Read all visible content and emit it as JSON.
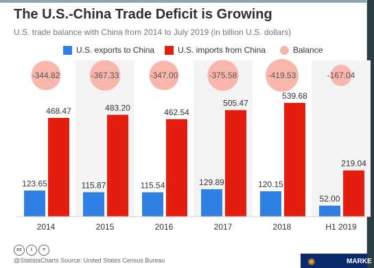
{
  "title": "The U.S.-China Trade Deficit is Growing",
  "subtitle": "U.S. trade balance with China from 2014 to July 2019 (in billion U.S. dollars)",
  "footer": {
    "credit": "@StatistaCharts   Source: United States Census Bureau",
    "ticker_label": "MARKE"
  },
  "colors": {
    "exports": "#2f80e2",
    "imports": "#e31e0f",
    "balance": "#f8b6ad",
    "band": "#f3f3f3"
  },
  "chart_data": {
    "type": "bar",
    "categories": [
      "2014",
      "2015",
      "2016",
      "2017",
      "2018",
      "H1 2019"
    ],
    "series": [
      {
        "name": "U.S. exports to China",
        "values": [
          123.65,
          115.87,
          115.54,
          129.89,
          120.15,
          52.0
        ]
      },
      {
        "name": "U.S. imports from China",
        "values": [
          468.47,
          483.2,
          462.54,
          505.47,
          539.68,
          219.04
        ]
      },
      {
        "name": "Balance",
        "values": [
          -344.82,
          -367.33,
          -347.0,
          -375.58,
          -419.53,
          -167.04
        ]
      }
    ],
    "ylim": [
      0,
      540
    ],
    "legend_position": "top",
    "grid": false
  }
}
